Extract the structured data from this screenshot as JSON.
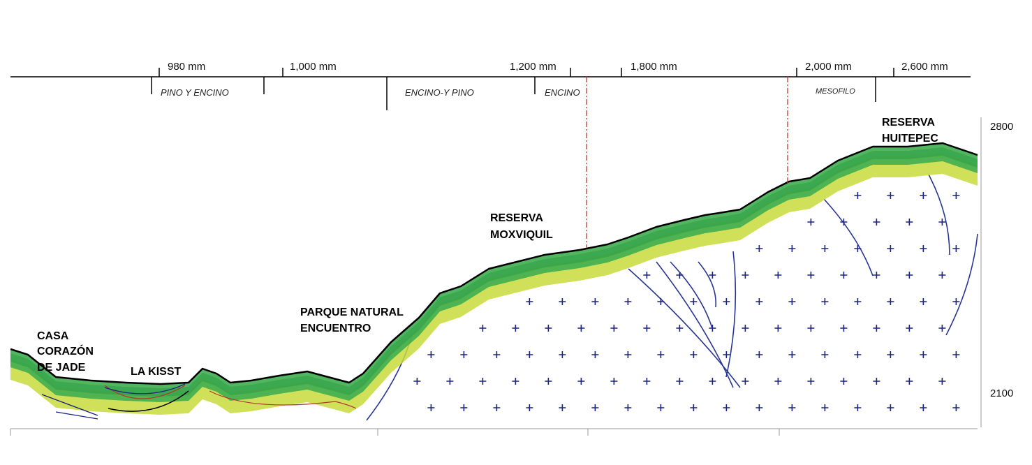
{
  "precipitation": [
    "980 mm",
    "1,000 mm",
    "1,200 mm",
    "1,800 mm",
    "2,000 mm",
    "2,600 mm"
  ],
  "vegetation_zones": [
    "PINO Y ENCINO",
    "ENCINO-Y PINO",
    "ENCINO",
    "MESOFILO"
  ],
  "elevation_labels": [
    "2800",
    "2100"
  ],
  "places": [
    {
      "lines": [
        "CASA",
        "CORAZÓN",
        "DE JADE"
      ]
    },
    {
      "lines": [
        "LA KISST"
      ]
    },
    {
      "lines": [
        "PARQUE NATURAL",
        "ENCUENTRO"
      ]
    },
    {
      "lines": [
        "RESERVA",
        "MOXVIQUIL"
      ]
    },
    {
      "lines": [
        "RESERVA",
        "HUITEPEC"
      ]
    }
  ]
}
